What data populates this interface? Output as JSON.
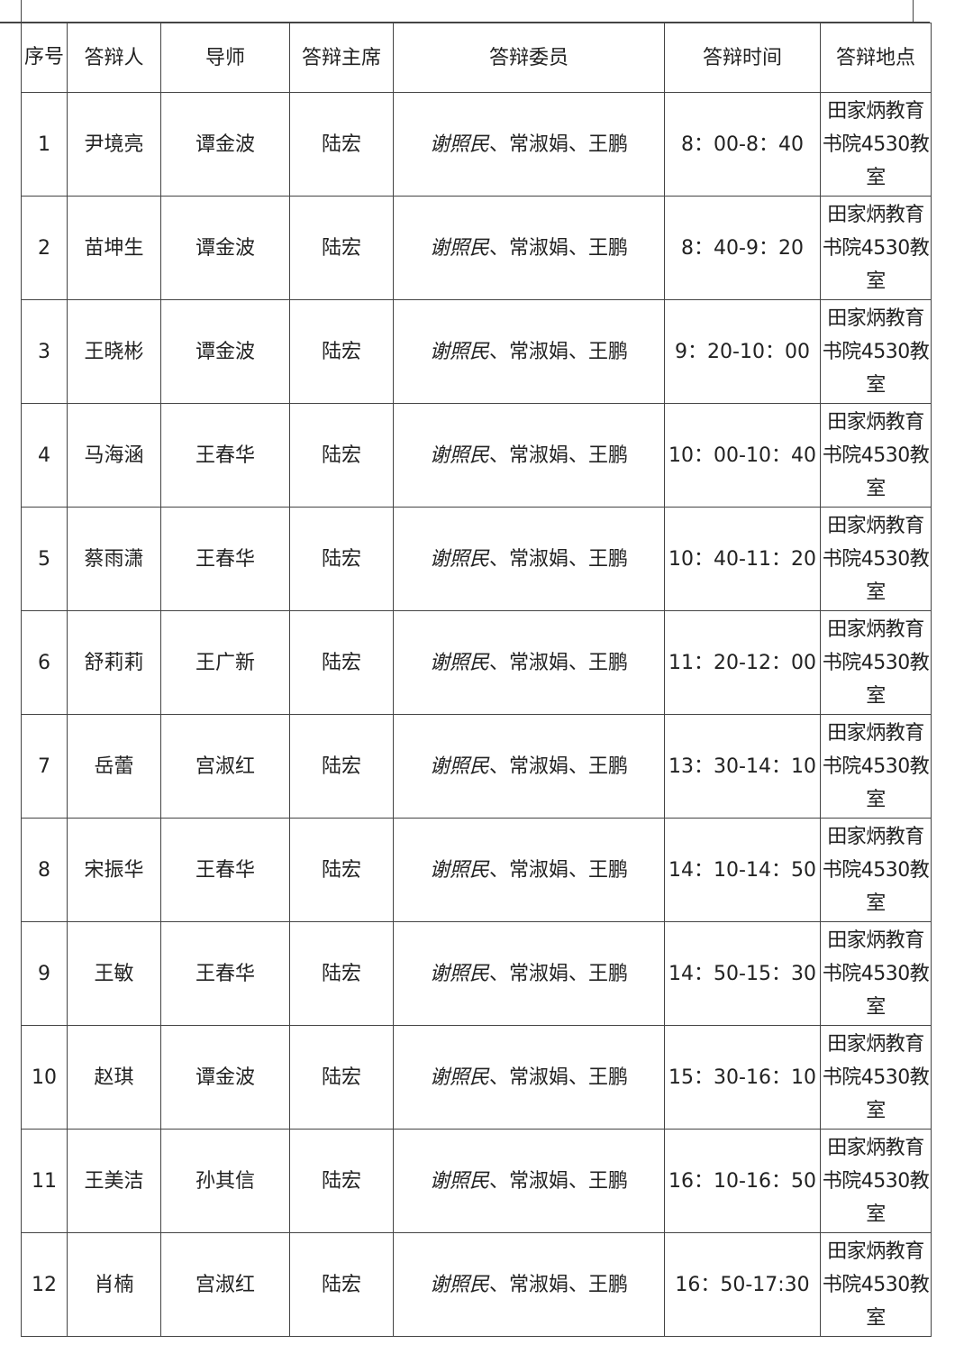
{
  "headers": [
    "序号",
    "答辩人",
    "导师",
    "答辩主席",
    "答辩委员",
    "答辩时间",
    "答辩地点"
  ],
  "rows": [
    {
      "no": "1",
      "student": "尹境亮",
      "advisor": "谭金波",
      "chair": "陆宏",
      "member_first": "谢照民",
      "members_rest": "、常淑娟、王鹏",
      "time": "8：00-8：40",
      "location": "田家炳教育书院4530教室"
    },
    {
      "no": "2",
      "student": "苗坤生",
      "advisor": "谭金波",
      "chair": "陆宏",
      "member_first": "谢照民",
      "members_rest": "、常淑娟、王鹏",
      "time": "8：40-9：20",
      "location": "田家炳教育书院4530教室"
    },
    {
      "no": "3",
      "student": "王晓彬",
      "advisor": "谭金波",
      "chair": "陆宏",
      "member_first": "谢照民",
      "members_rest": "、常淑娟、王鹏",
      "time": "9：20-10：00",
      "location": "田家炳教育书院4530教室"
    },
    {
      "no": "4",
      "student": "马海涵",
      "advisor": "王春华",
      "chair": "陆宏",
      "member_first": "谢照民",
      "members_rest": "、常淑娟、王鹏",
      "time": "10：00-10：40",
      "location": "田家炳教育书院4530教室"
    },
    {
      "no": "5",
      "student": "蔡雨潇",
      "advisor": "王春华",
      "chair": "陆宏",
      "member_first": "谢照民",
      "members_rest": "、常淑娟、王鹏",
      "time": "10：40-11：20",
      "location": "田家炳教育书院4530教室"
    },
    {
      "no": "6",
      "student": "舒莉莉",
      "advisor": "王广新",
      "chair": "陆宏",
      "member_first": "谢照民",
      "members_rest": "、常淑娟、王鹏",
      "time": "11：20-12：00",
      "location": "田家炳教育书院4530教室"
    },
    {
      "no": "7",
      "student": "岳蕾",
      "advisor": "宫淑红",
      "chair": "陆宏",
      "member_first": "谢照民",
      "members_rest": "、常淑娟、王鹏",
      "time": "13：30-14：10",
      "location": "田家炳教育书院4530教室"
    },
    {
      "no": "8",
      "student": "宋振华",
      "advisor": "王春华",
      "chair": "陆宏",
      "member_first": "谢照民",
      "members_rest": "、常淑娟、王鹏",
      "time": "14：10-14：50",
      "location": "田家炳教育书院4530教室"
    },
    {
      "no": "9",
      "student": "王敏",
      "advisor": "王春华",
      "chair": "陆宏",
      "member_first": "谢照民",
      "members_rest": "、常淑娟、王鹏",
      "time": "14：50-15：30",
      "location": "田家炳教育书院4530教室"
    },
    {
      "no": "10",
      "student": "赵琪",
      "advisor": "谭金波",
      "chair": "陆宏",
      "member_first": "谢照民",
      "members_rest": "、常淑娟、王鹏",
      "time": "15：30-16：10",
      "location": "田家炳教育书院4530教室"
    },
    {
      "no": "11",
      "student": "王美洁",
      "advisor": "孙其信",
      "chair": "陆宏",
      "member_first": "谢照民",
      "members_rest": "、常淑娟、王鹏",
      "time": "16：10-16：50",
      "location": "田家炳教育书院4530教室"
    },
    {
      "no": "12",
      "student": "肖楠",
      "advisor": "宫淑红",
      "chair": "陆宏",
      "member_first": "谢照民",
      "members_rest": "、常淑娟、王鹏",
      "time": "16：50-17:30",
      "location": "田家炳教育书院4530教室"
    }
  ]
}
